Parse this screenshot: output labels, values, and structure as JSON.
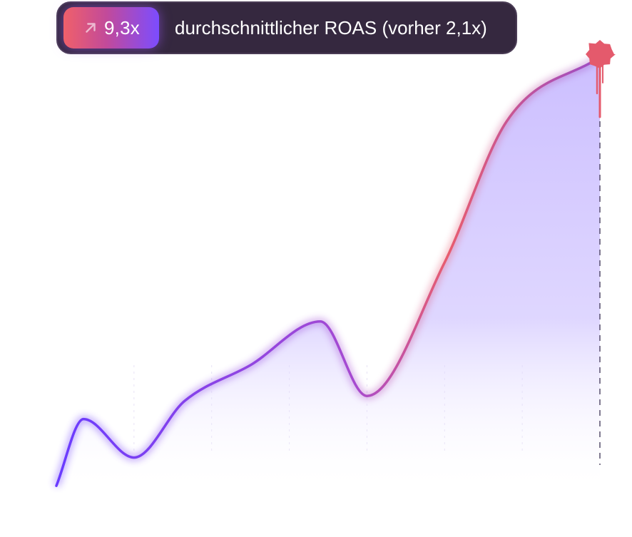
{
  "header": {
    "badge_value": "9,3x",
    "label": "durchschnittlicher ROAS (vorher 2,1x)",
    "arrow_icon": "arrow-up-right-icon"
  },
  "colors": {
    "line_start": "#6a3bff",
    "line_mid": "#a64ad0",
    "line_peak": "#e85d6e",
    "line_end": "#9b4cc8",
    "area_fill": "#cbbdff",
    "marker": "#e45a6c",
    "pill_bg": "#35283f"
  },
  "chart_data": {
    "type": "area",
    "x": [
      0,
      0.7,
      2,
      3.3,
      5,
      6.8,
      8,
      10,
      11.6,
      14
    ],
    "values": [
      0.3,
      2.9,
      1.4,
      3.6,
      5.0,
      6.7,
      3.8,
      9.0,
      14.5,
      17.0
    ],
    "xlim": [
      0,
      14
    ],
    "ylim": [
      0,
      18
    ],
    "grid": false,
    "end_marker": "paint-splat",
    "end_dashed_line": true
  }
}
